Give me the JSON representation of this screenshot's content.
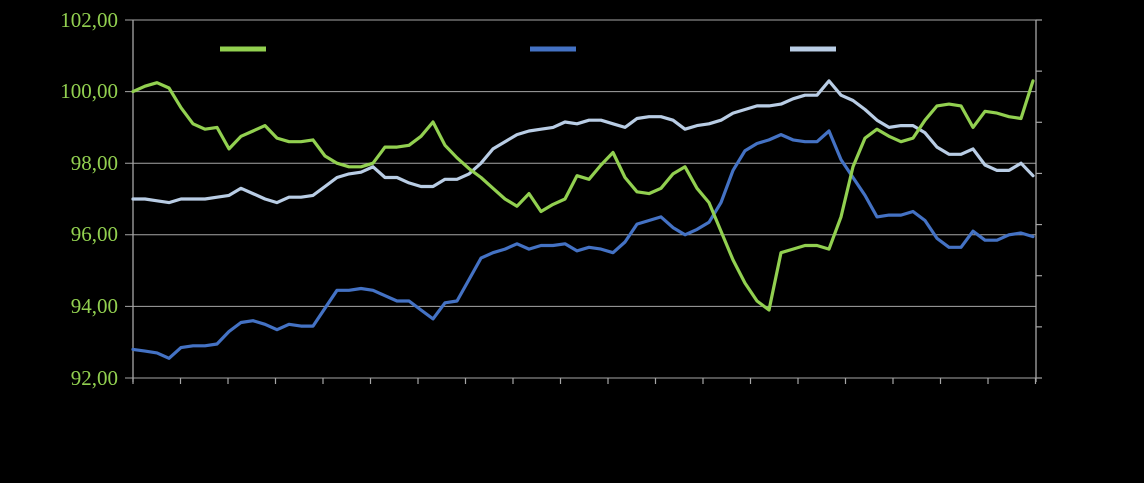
{
  "chart_data": {
    "type": "line",
    "title": "",
    "background_color": "#000000",
    "gridline_color": "#A6A6A6",
    "axis_color": "#A6A6A6",
    "grid": true,
    "y_axis": {
      "min": 92,
      "max": 102,
      "major_unit": 2,
      "tick_labels": [
        "102,00",
        "100,00",
        "98,00",
        "96,00",
        "94,00",
        "92,00"
      ],
      "tick_values": [
        102,
        100,
        98,
        96,
        94,
        92
      ],
      "label_color": "#92D050",
      "number_format": "comma-decimal"
    },
    "x_axis": {
      "tick_count": 20,
      "labels_visible": false,
      "tick_labels": []
    },
    "secondary_y_axis": {
      "labels_visible": false,
      "tick_count": 8
    },
    "legend": {
      "position": "top",
      "labels_visible": false,
      "entries": [
        {
          "label": "",
          "color": "#92D050"
        },
        {
          "label": "",
          "color": "#4472C4"
        },
        {
          "label": "",
          "color": "#B9CDE5"
        }
      ]
    },
    "series": [
      {
        "name": "blue-series",
        "color": "#4472C4",
        "values": [
          92.8,
          92.75,
          92.7,
          92.55,
          92.85,
          92.9,
          92.9,
          92.95,
          93.3,
          93.55,
          93.6,
          93.5,
          93.35,
          93.5,
          93.45,
          93.45,
          93.95,
          94.45,
          94.45,
          94.5,
          94.45,
          94.3,
          94.15,
          94.15,
          93.9,
          93.65,
          94.1,
          94.15,
          94.75,
          95.35,
          95.5,
          95.6,
          95.75,
          95.6,
          95.7,
          95.7,
          95.75,
          95.55,
          95.65,
          95.6,
          95.5,
          95.8,
          96.3,
          96.4,
          96.5,
          96.2,
          96.0,
          96.15,
          96.35,
          96.9,
          97.8,
          98.35,
          98.55,
          98.65,
          98.8,
          98.65,
          98.6,
          98.6,
          98.9,
          98.1,
          97.6,
          97.1,
          96.5,
          96.55,
          96.55,
          96.65,
          96.4,
          95.9,
          95.65,
          95.65,
          96.1,
          95.85,
          95.85,
          96.0,
          96.05,
          95.95
        ]
      },
      {
        "name": "light-blue-series",
        "color": "#B9CDE5",
        "values": [
          97.0,
          97.0,
          96.95,
          96.9,
          97.0,
          97.0,
          97.0,
          97.05,
          97.1,
          97.3,
          97.15,
          97.0,
          96.9,
          97.05,
          97.05,
          97.1,
          97.35,
          97.6,
          97.7,
          97.75,
          97.9,
          97.6,
          97.6,
          97.45,
          97.35,
          97.35,
          97.55,
          97.55,
          97.7,
          98.0,
          98.4,
          98.6,
          98.8,
          98.9,
          98.95,
          99.0,
          99.15,
          99.1,
          99.2,
          99.2,
          99.1,
          99.0,
          99.25,
          99.3,
          99.3,
          99.2,
          98.95,
          99.05,
          99.1,
          99.2,
          99.4,
          99.5,
          99.6,
          99.6,
          99.65,
          99.8,
          99.9,
          99.9,
          100.3,
          99.9,
          99.75,
          99.5,
          99.2,
          99.0,
          99.05,
          99.05,
          98.85,
          98.45,
          98.25,
          98.25,
          98.4,
          97.95,
          97.8,
          97.8,
          98.0,
          97.65
        ]
      },
      {
        "name": "green-series",
        "color": "#92D050",
        "values": [
          100.0,
          100.15,
          100.25,
          100.1,
          99.55,
          99.1,
          98.95,
          99.0,
          98.4,
          98.75,
          98.9,
          99.05,
          98.7,
          98.6,
          98.6,
          98.65,
          98.2,
          98.0,
          97.9,
          97.9,
          98.0,
          98.45,
          98.45,
          98.5,
          98.75,
          99.15,
          98.5,
          98.15,
          97.85,
          97.6,
          97.3,
          97.0,
          96.8,
          97.15,
          96.65,
          96.85,
          97.0,
          97.65,
          97.55,
          97.95,
          98.3,
          97.6,
          97.2,
          97.15,
          97.3,
          97.7,
          97.9,
          97.3,
          96.9,
          96.1,
          95.3,
          94.65,
          94.15,
          93.9,
          95.5,
          95.6,
          95.7,
          95.7,
          95.6,
          96.5,
          97.9,
          98.7,
          98.95,
          98.75,
          98.6,
          98.7,
          99.2,
          99.6,
          99.65,
          99.6,
          99.0,
          99.45,
          99.4,
          99.3,
          99.25,
          100.3
        ]
      }
    ]
  }
}
